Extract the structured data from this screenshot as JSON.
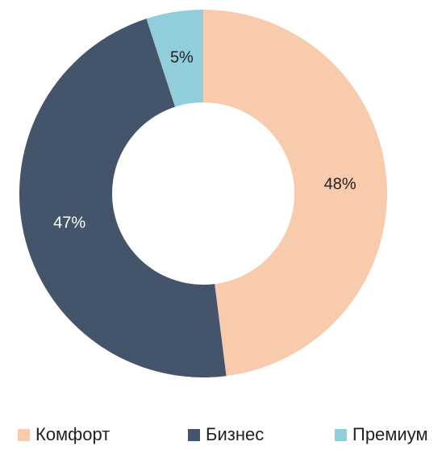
{
  "chart_data": {
    "type": "donut",
    "categories": [
      "Комфорт",
      "Бизнес",
      "Премиум"
    ],
    "values": [
      48,
      47,
      5
    ],
    "value_labels": [
      "48%",
      "47%",
      "5%"
    ],
    "colors": [
      "#f8cbad",
      "#44546a",
      "#92cddc"
    ]
  }
}
